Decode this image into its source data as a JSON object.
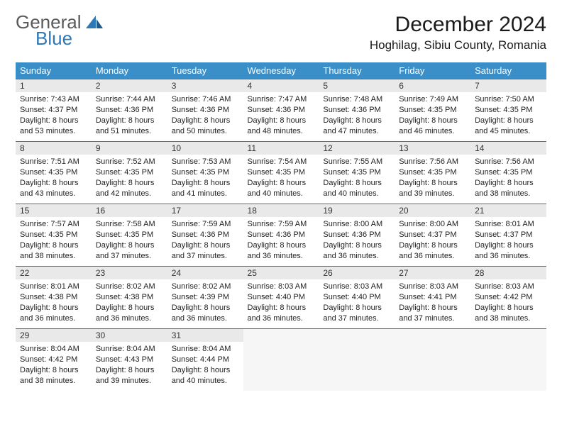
{
  "brand": {
    "line1": "General",
    "line2": "Blue"
  },
  "title": "December 2024",
  "location": "Hoghilag, Sibiu County, Romania",
  "colors": {
    "header_bg": "#3b8fc9",
    "header_text": "#ffffff",
    "daynum_bg": "#e9e9e9",
    "daynum_border": "#2f78b7",
    "brand_gray": "#5a5a5a",
    "brand_blue": "#2f78b7",
    "body_text": "#222222",
    "page_bg": "#ffffff"
  },
  "typography": {
    "title_fontsize": 30,
    "location_fontsize": 17,
    "th_fontsize": 13,
    "cell_fontsize": 11
  },
  "weekdays": [
    "Sunday",
    "Monday",
    "Tuesday",
    "Wednesday",
    "Thursday",
    "Friday",
    "Saturday"
  ],
  "weeks": [
    [
      {
        "n": "1",
        "sr": "7:43 AM",
        "ss": "4:37 PM",
        "dl": "8 hours and 53 minutes."
      },
      {
        "n": "2",
        "sr": "7:44 AM",
        "ss": "4:36 PM",
        "dl": "8 hours and 51 minutes."
      },
      {
        "n": "3",
        "sr": "7:46 AM",
        "ss": "4:36 PM",
        "dl": "8 hours and 50 minutes."
      },
      {
        "n": "4",
        "sr": "7:47 AM",
        "ss": "4:36 PM",
        "dl": "8 hours and 48 minutes."
      },
      {
        "n": "5",
        "sr": "7:48 AM",
        "ss": "4:36 PM",
        "dl": "8 hours and 47 minutes."
      },
      {
        "n": "6",
        "sr": "7:49 AM",
        "ss": "4:35 PM",
        "dl": "8 hours and 46 minutes."
      },
      {
        "n": "7",
        "sr": "7:50 AM",
        "ss": "4:35 PM",
        "dl": "8 hours and 45 minutes."
      }
    ],
    [
      {
        "n": "8",
        "sr": "7:51 AM",
        "ss": "4:35 PM",
        "dl": "8 hours and 43 minutes."
      },
      {
        "n": "9",
        "sr": "7:52 AM",
        "ss": "4:35 PM",
        "dl": "8 hours and 42 minutes."
      },
      {
        "n": "10",
        "sr": "7:53 AM",
        "ss": "4:35 PM",
        "dl": "8 hours and 41 minutes."
      },
      {
        "n": "11",
        "sr": "7:54 AM",
        "ss": "4:35 PM",
        "dl": "8 hours and 40 minutes."
      },
      {
        "n": "12",
        "sr": "7:55 AM",
        "ss": "4:35 PM",
        "dl": "8 hours and 40 minutes."
      },
      {
        "n": "13",
        "sr": "7:56 AM",
        "ss": "4:35 PM",
        "dl": "8 hours and 39 minutes."
      },
      {
        "n": "14",
        "sr": "7:56 AM",
        "ss": "4:35 PM",
        "dl": "8 hours and 38 minutes."
      }
    ],
    [
      {
        "n": "15",
        "sr": "7:57 AM",
        "ss": "4:35 PM",
        "dl": "8 hours and 38 minutes."
      },
      {
        "n": "16",
        "sr": "7:58 AM",
        "ss": "4:35 PM",
        "dl": "8 hours and 37 minutes."
      },
      {
        "n": "17",
        "sr": "7:59 AM",
        "ss": "4:36 PM",
        "dl": "8 hours and 37 minutes."
      },
      {
        "n": "18",
        "sr": "7:59 AM",
        "ss": "4:36 PM",
        "dl": "8 hours and 36 minutes."
      },
      {
        "n": "19",
        "sr": "8:00 AM",
        "ss": "4:36 PM",
        "dl": "8 hours and 36 minutes."
      },
      {
        "n": "20",
        "sr": "8:00 AM",
        "ss": "4:37 PM",
        "dl": "8 hours and 36 minutes."
      },
      {
        "n": "21",
        "sr": "8:01 AM",
        "ss": "4:37 PM",
        "dl": "8 hours and 36 minutes."
      }
    ],
    [
      {
        "n": "22",
        "sr": "8:01 AM",
        "ss": "4:38 PM",
        "dl": "8 hours and 36 minutes."
      },
      {
        "n": "23",
        "sr": "8:02 AM",
        "ss": "4:38 PM",
        "dl": "8 hours and 36 minutes."
      },
      {
        "n": "24",
        "sr": "8:02 AM",
        "ss": "4:39 PM",
        "dl": "8 hours and 36 minutes."
      },
      {
        "n": "25",
        "sr": "8:03 AM",
        "ss": "4:40 PM",
        "dl": "8 hours and 36 minutes."
      },
      {
        "n": "26",
        "sr": "8:03 AM",
        "ss": "4:40 PM",
        "dl": "8 hours and 37 minutes."
      },
      {
        "n": "27",
        "sr": "8:03 AM",
        "ss": "4:41 PM",
        "dl": "8 hours and 37 minutes."
      },
      {
        "n": "28",
        "sr": "8:03 AM",
        "ss": "4:42 PM",
        "dl": "8 hours and 38 minutes."
      }
    ],
    [
      {
        "n": "29",
        "sr": "8:04 AM",
        "ss": "4:42 PM",
        "dl": "8 hours and 38 minutes."
      },
      {
        "n": "30",
        "sr": "8:04 AM",
        "ss": "4:43 PM",
        "dl": "8 hours and 39 minutes."
      },
      {
        "n": "31",
        "sr": "8:04 AM",
        "ss": "4:44 PM",
        "dl": "8 hours and 40 minutes."
      },
      null,
      null,
      null,
      null
    ]
  ],
  "labels": {
    "sunrise": "Sunrise:",
    "sunset": "Sunset:",
    "daylight": "Daylight:"
  }
}
